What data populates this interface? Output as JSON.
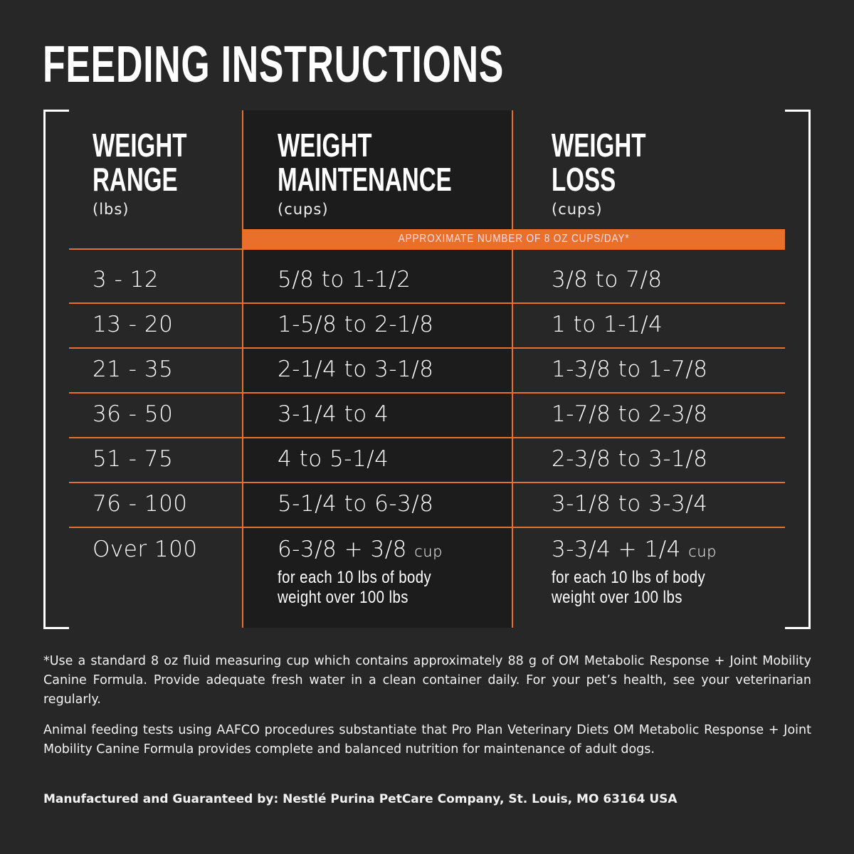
{
  "title": "FEEDING INSTRUCTIONS",
  "colors": {
    "background": "#272727",
    "accent": "#e8702a",
    "highlight_column": "#1c1c1c"
  },
  "headers": [
    {
      "line1": "WEIGHT",
      "line2": "RANGE",
      "unit": "(lbs)"
    },
    {
      "line1": "WEIGHT",
      "line2": "MAINTENANCE",
      "unit": "(cups)"
    },
    {
      "line1": "WEIGHT",
      "line2": "LOSS",
      "unit": "(cups)"
    }
  ],
  "banner": "APPROXIMATE NUMBER OF 8 OZ CUPS/DAY*",
  "rows": [
    [
      "3 - 12",
      "5/8 to 1-1/2",
      "3/8 to 7/8"
    ],
    [
      "13 - 20",
      "1-5/8 to 2-1/8",
      "1 to 1-1/4"
    ],
    [
      "21 - 35",
      "2-1/4 to 3-1/8",
      "1-3/8 to 1-7/8"
    ],
    [
      "36 - 50",
      "3-1/4 to 4",
      "1-7/8 to 2-3/8"
    ],
    [
      "51 - 75",
      "4 to 5-1/4",
      "2-3/8 to 3-1/8"
    ],
    [
      "76 - 100",
      "5-1/4 to 6-3/8",
      "3-1/8 to 3-3/4"
    ]
  ],
  "last_row": {
    "range": "Over 100",
    "maintenance": {
      "value": "6-3/8 + 3/8",
      "unit": "cup",
      "note_line1": "for each 10 lbs of body",
      "note_line2": "weight over 100 lbs"
    },
    "loss": {
      "value": "3-3/4 + 1/4",
      "unit": "cup",
      "note_line1": "for each 10 lbs of body",
      "note_line2": "weight over 100 lbs"
    }
  },
  "footnotes": [
    "*Use a standard 8 oz fluid measuring cup which contains approximately 88 g of OM Metabolic Response + Joint Mobility Canine Formula. Provide adequate fresh water in a clean container daily. For your pet’s health, see your veterinarian regularly.",
    "Animal feeding tests using AAFCO procedures substantiate that Pro Plan Veterinary Diets OM Metabolic Response + Joint Mobility Canine Formula provides complete and balanced nutrition for maintenance of adult dogs."
  ],
  "manufacturer": "Manufactured and Guaranteed by: Nestlé Purina PetCare Company, St. Louis, MO 63164 USA"
}
